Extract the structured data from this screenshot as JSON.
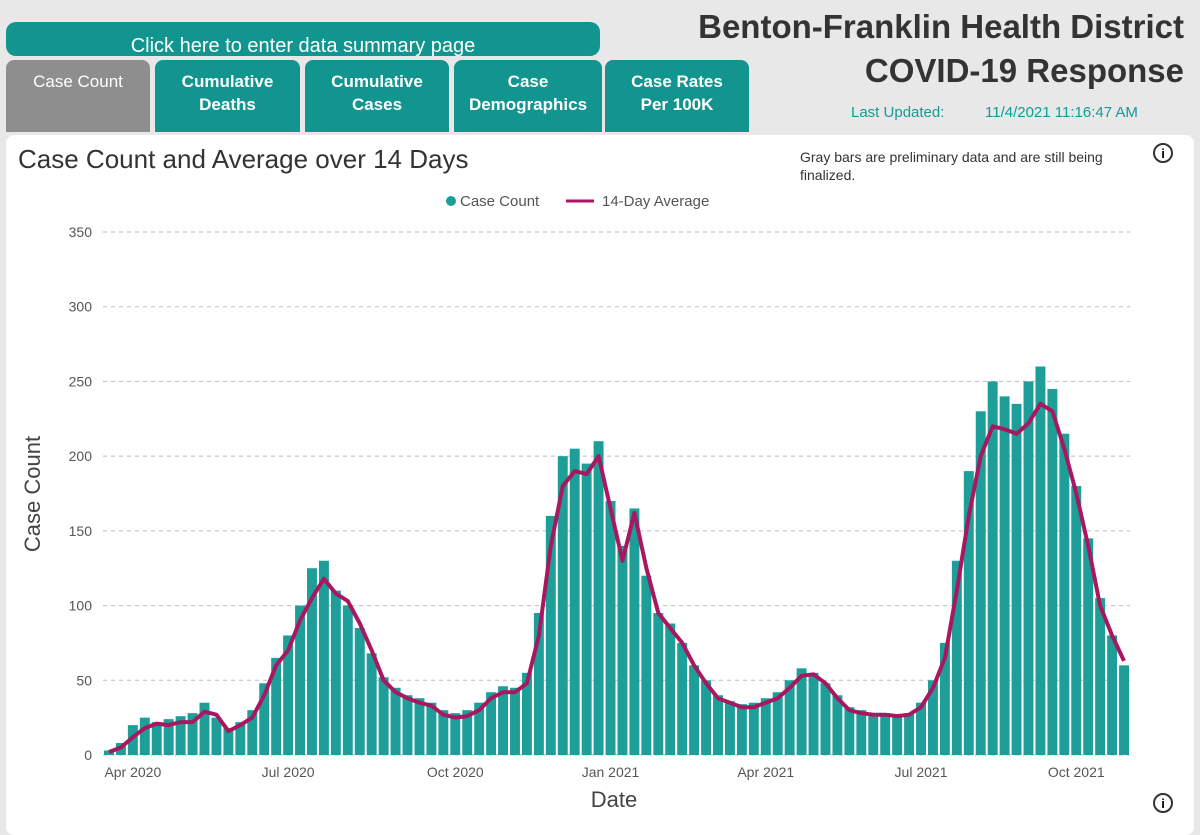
{
  "header": {
    "summary_button": "Click here to enter data summary page",
    "tabs": [
      "Case Count",
      "Cumulative\nDeaths",
      "Cumulative\nCases",
      "Case\nDemographics",
      "Case Rates\nPer 100K"
    ],
    "title_line1": "Benton-Franklin Health District",
    "title_line2": "COVID-19 Response",
    "updated_label": "Last Updated:",
    "updated_value": "11/4/2021 11:16:47 AM"
  },
  "chart_data": {
    "type": "bar_line",
    "title": "Case Count and Average over 14 Days",
    "note": "Gray bars are preliminary data and are still being finalized.",
    "x_label": "Date",
    "y_label": "Case Count",
    "categories": [
      null,
      null,
      "Apr 2020",
      null,
      null,
      null,
      null,
      null,
      null,
      null,
      null,
      null,
      null,
      null,
      null,
      "Jul 2020",
      null,
      null,
      null,
      null,
      null,
      null,
      null,
      null,
      null,
      null,
      null,
      null,
      null,
      "Oct 2020",
      null,
      null,
      null,
      null,
      null,
      null,
      null,
      null,
      null,
      null,
      null,
      null,
      "Jan 2021",
      null,
      null,
      null,
      null,
      null,
      null,
      null,
      null,
      null,
      null,
      null,
      null,
      "Apr 2021",
      null,
      null,
      null,
      null,
      null,
      null,
      null,
      null,
      null,
      null,
      null,
      null,
      "Jul 2021",
      null,
      null,
      null,
      null,
      null,
      null,
      null,
      null,
      null,
      null,
      null,
      null,
      "Oct 2021",
      null,
      null,
      null,
      null
    ],
    "series": [
      {
        "name": "Case Count",
        "color": "#1e9e99",
        "values": [
          3,
          8,
          20,
          25,
          22,
          24,
          26,
          28,
          35,
          25,
          18,
          22,
          30,
          48,
          65,
          80,
          100,
          125,
          130,
          110,
          100,
          85,
          68,
          52,
          45,
          40,
          38,
          35,
          30,
          28,
          30,
          35,
          42,
          46,
          45,
          55,
          95,
          160,
          200,
          205,
          195,
          210,
          170,
          140,
          165,
          120,
          95,
          88,
          75,
          60,
          50,
          40,
          36,
          34,
          35,
          38,
          42,
          50,
          58,
          55,
          48,
          40,
          32,
          30,
          28,
          28,
          27,
          28,
          35,
          50,
          75,
          130,
          190,
          230,
          250,
          240,
          235,
          250,
          260,
          245,
          215,
          180,
          145,
          105,
          80,
          60
        ]
      },
      {
        "name": "14-Day Average",
        "color": "#a8175f",
        "values": [
          2,
          5,
          12,
          18,
          21,
          20,
          22,
          22,
          29,
          27,
          16,
          20,
          25,
          40,
          60,
          70,
          90,
          105,
          118,
          108,
          103,
          88,
          70,
          50,
          42,
          38,
          35,
          33,
          27,
          25,
          26,
          30,
          38,
          42,
          42,
          48,
          80,
          140,
          180,
          190,
          188,
          200,
          165,
          130,
          162,
          125,
          95,
          85,
          75,
          60,
          48,
          38,
          35,
          32,
          32,
          35,
          38,
          45,
          53,
          54,
          48,
          38,
          30,
          28,
          27,
          27,
          26,
          27,
          32,
          45,
          65,
          110,
          160,
          200,
          220,
          218,
          215,
          222,
          235,
          230,
          205,
          175,
          140,
          100,
          80,
          63
        ]
      }
    ],
    "ylim": [
      0,
      350
    ],
    "yticks": [
      0,
      50,
      100,
      150,
      200,
      250,
      300,
      350
    ],
    "grid": true
  }
}
